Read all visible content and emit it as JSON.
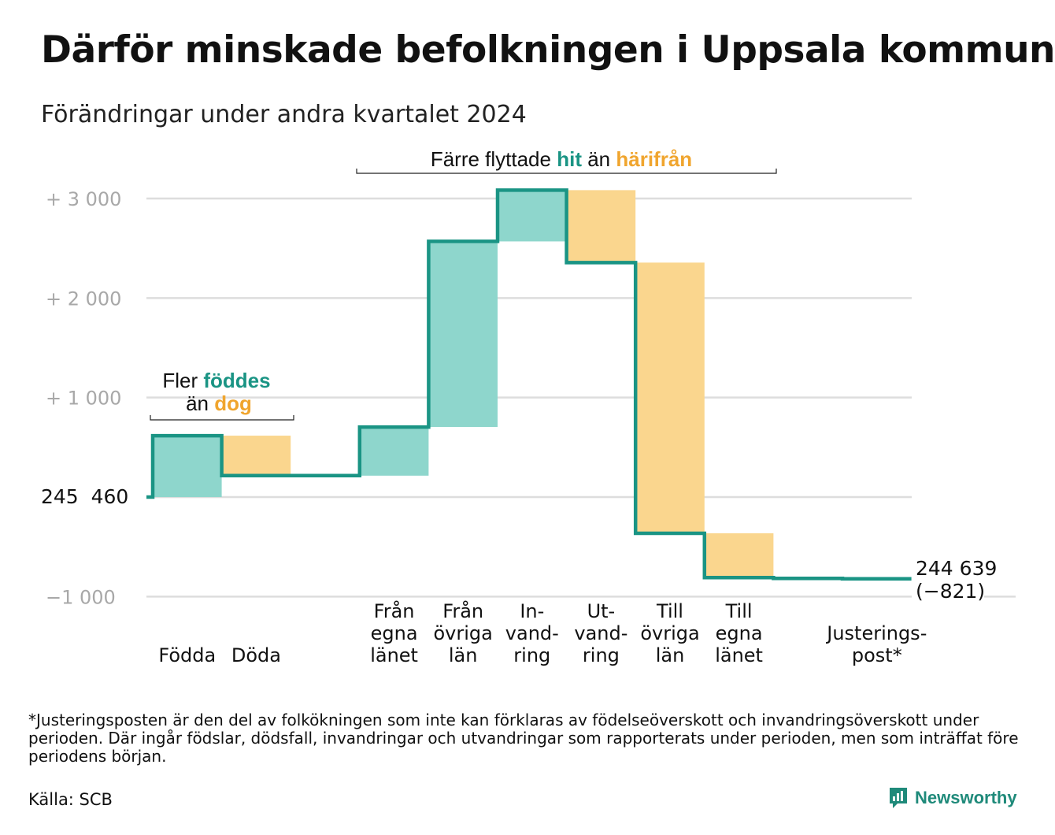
{
  "title": "Därför minskade befolkningen i Uppsala kommun",
  "subtitle": "Förändringar under andra kvartalet 2024",
  "colors": {
    "inflow": "#8ed6cc",
    "outflow": "#fad68e",
    "line": "#1a9484",
    "hit": "#1a9484",
    "dog": "#f0a52e",
    "grid": "#dddddd",
    "tick": "#a8a8a8"
  },
  "annotations": {
    "born": {
      "part1": "Fler ",
      "strong1": "föddes",
      "part2": "än ",
      "strong2": "dog"
    },
    "moves": {
      "part1": "Färre flyttade ",
      "strong1": "hit",
      "part2": " än ",
      "strong2": "härifrån"
    }
  },
  "chart_data": {
    "type": "waterfall",
    "start_value": 245460,
    "start_label": "245  460",
    "end_label_line1": "244 639",
    "end_label_line2": "(−821)",
    "ylim": [
      -1000,
      3000
    ],
    "yticks": [
      {
        "value": 3000,
        "label": "+  3  000"
      },
      {
        "value": 2000,
        "label": "+  2  000"
      },
      {
        "value": 1000,
        "label": "+  1  000"
      },
      {
        "value": -1000,
        "label": "−1   000"
      }
    ],
    "steps": [
      {
        "label": [
          "Födda"
        ],
        "change": 617,
        "kind": "in"
      },
      {
        "label": [
          "Döda"
        ],
        "change": -402,
        "kind": "out"
      },
      {
        "label": [],
        "change": 0,
        "kind": "none"
      },
      {
        "label": [
          "Från",
          "egna",
          "länet"
        ],
        "change": 489,
        "kind": "in"
      },
      {
        "label": [
          "Från",
          "övriga",
          "län"
        ],
        "change": 1865,
        "kind": "in"
      },
      {
        "label": [
          "In-",
          "vand-",
          "ring"
        ],
        "change": 515,
        "kind": "in"
      },
      {
        "label": [
          "Ut-",
          "vand-",
          "ring"
        ],
        "change": -728,
        "kind": "out"
      },
      {
        "label": [
          "Till",
          "övriga",
          "län"
        ],
        "change": -2720,
        "kind": "out"
      },
      {
        "label": [
          "Till",
          "egna",
          "länet"
        ],
        "change": -445,
        "kind": "out"
      },
      {
        "label": [],
        "change": -8,
        "kind": "none"
      },
      {
        "label": [
          "Justerings-",
          "post*"
        ],
        "change": -4,
        "kind": "none"
      }
    ]
  },
  "footnote": "*Justeringsposten är den del av folkökningen som inte kan förklaras av födelseöverskott och invandringsöverskott under perioden. Där ingår födslar, dödsfall, invandringar och utvandringar som rapporterats under perioden, men som inträffat före periodens början.",
  "source": "Källa: SCB",
  "logo_text": "Newsworthy"
}
